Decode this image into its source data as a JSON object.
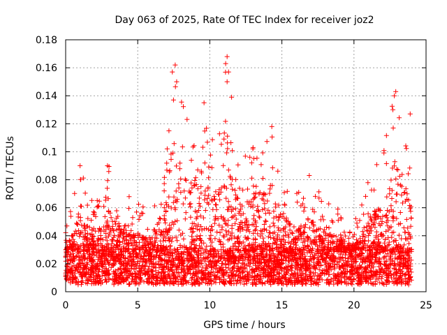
{
  "chart_data": {
    "type": "scatter",
    "title": "Day 063 of 2025, Rate Of TEC Index for receiver joz2",
    "xlabel": "GPS time / hours",
    "ylabel": "ROTI / TECUs",
    "xlim": [
      0,
      25
    ],
    "ylim": [
      0,
      0.18
    ],
    "xticks": [
      0,
      5,
      10,
      15,
      20,
      25
    ],
    "xtick_labels": [
      "0",
      "5",
      "10",
      "15",
      "20",
      "25"
    ],
    "yticks": [
      0,
      0.02,
      0.04,
      0.06,
      0.08,
      0.1,
      0.12,
      0.14,
      0.16,
      0.18
    ],
    "ytick_labels": [
      "0",
      "0.02",
      "0.04",
      "0.06",
      "0.08",
      "0.1",
      "0.12",
      "0.14",
      "0.16",
      "0.18"
    ],
    "grid": true,
    "marker": "+",
    "color": "#ff0000",
    "series": [
      {
        "name": "ROTI",
        "data_range_hours": [
          0,
          24
        ],
        "baseline_roti": [
          0.005,
          0.03
        ],
        "envelope": [
          {
            "hour": 0,
            "peak": 0.045
          },
          {
            "hour": 1,
            "peak": 0.09
          },
          {
            "hour": 2,
            "peak": 0.06
          },
          {
            "hour": 3,
            "peak": 0.09
          },
          {
            "hour": 4,
            "peak": 0.07
          },
          {
            "hour": 5,
            "peak": 0.065
          },
          {
            "hour": 6,
            "peak": 0.06
          },
          {
            "hour": 7,
            "peak": 0.1
          },
          {
            "hour": 7.5,
            "peak": 0.162
          },
          {
            "hour": 8.5,
            "peak": 0.12
          },
          {
            "hour": 9.5,
            "peak": 0.135
          },
          {
            "hour": 10.5,
            "peak": 0.1
          },
          {
            "hour": 11.2,
            "peak": 0.168
          },
          {
            "hour": 12,
            "peak": 0.095
          },
          {
            "hour": 13,
            "peak": 0.103
          },
          {
            "hour": 14.3,
            "peak": 0.118
          },
          {
            "hour": 15,
            "peak": 0.085
          },
          {
            "hour": 16,
            "peak": 0.07
          },
          {
            "hour": 17,
            "peak": 0.083
          },
          {
            "hour": 18,
            "peak": 0.065
          },
          {
            "hour": 19,
            "peak": 0.06
          },
          {
            "hour": 20,
            "peak": 0.05
          },
          {
            "hour": 21,
            "peak": 0.08
          },
          {
            "hour": 22,
            "peak": 0.1
          },
          {
            "hour": 22.8,
            "peak": 0.143
          },
          {
            "hour": 23.5,
            "peak": 0.12
          },
          {
            "hour": 24,
            "peak": 0.09
          }
        ],
        "notable_points": [
          {
            "x": 7.6,
            "y": 0.162
          },
          {
            "x": 7.4,
            "y": 0.157
          },
          {
            "x": 7.7,
            "y": 0.15
          },
          {
            "x": 9.6,
            "y": 0.135
          },
          {
            "x": 11.2,
            "y": 0.168
          },
          {
            "x": 11.1,
            "y": 0.163
          },
          {
            "x": 11.3,
            "y": 0.157
          },
          {
            "x": 11.2,
            "y": 0.15
          },
          {
            "x": 14.3,
            "y": 0.118
          },
          {
            "x": 22.9,
            "y": 0.143
          },
          {
            "x": 22.8,
            "y": 0.14
          },
          {
            "x": 22.7,
            "y": 0.13
          },
          {
            "x": 23.9,
            "y": 0.127
          },
          {
            "x": 1.0,
            "y": 0.09
          },
          {
            "x": 2.9,
            "y": 0.09
          },
          {
            "x": 13.0,
            "y": 0.103
          },
          {
            "x": 16.9,
            "y": 0.083
          }
        ]
      }
    ]
  }
}
